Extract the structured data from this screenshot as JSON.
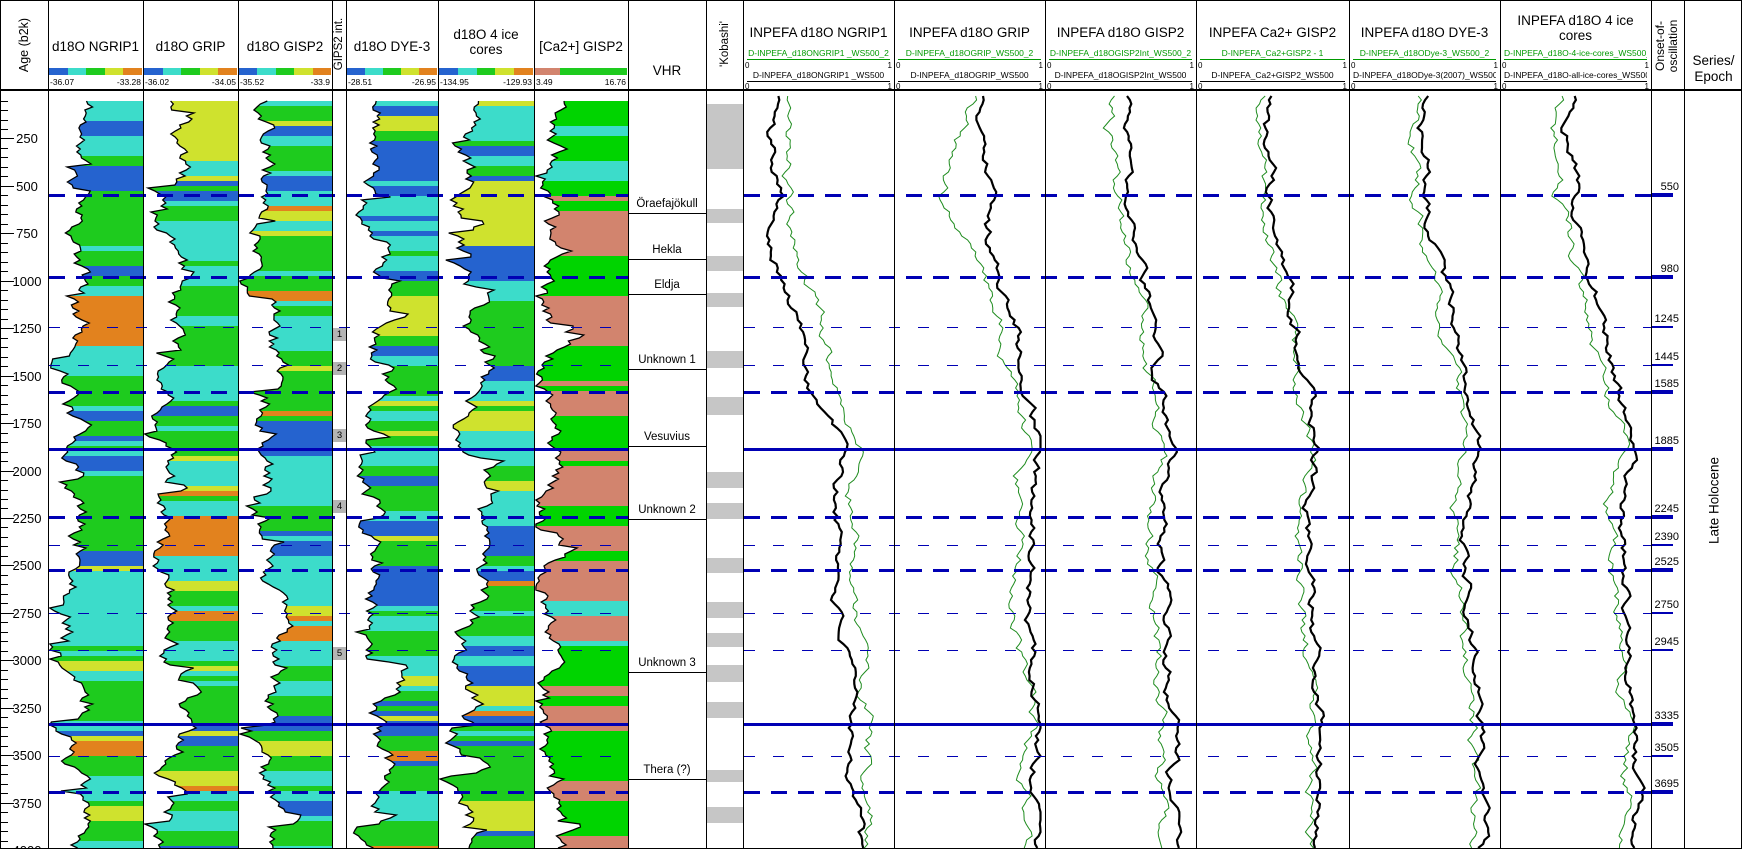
{
  "colors": {
    "marker_line": "#0000b4",
    "green_curve": "#1f8c1f",
    "green_label": "#009900",
    "kobashi_gray": "#c6c6c6",
    "marker_box_gray": "#b4b4b4"
  },
  "chart_data": {
    "type": "well-log-correlation-panel",
    "age_axis": {
      "title": "Age (b2k)",
      "min": 0,
      "max": 4000,
      "minor_step": 50,
      "major_step": 250
    },
    "log_age_samples": [
      0,
      300,
      550,
      800,
      1100,
      1400,
      1700,
      2000,
      2300,
      2600,
      2900,
      3200,
      3500,
      3800,
      4000
    ],
    "log_tracks": [
      {
        "id": "ngrip1",
        "title_lines": [
          "d18O NGRIP1"
        ],
        "scale_min": "-36.07",
        "scale_max": "-33.28",
        "palette": [
          "#2563cf",
          "#3cdcca",
          "#1ecb1e",
          "#cfe22e",
          "#e2821e"
        ],
        "weights": [
          0.16,
          0.4,
          0.33,
          0.07,
          0.04
        ],
        "colorbar": {
          "colors": [
            "#2563cf",
            "#3cdcca",
            "#1ecb1e",
            "#cfe22e",
            "#e2821e"
          ],
          "widths": [
            0.2,
            0.2,
            0.2,
            0.2,
            0.2
          ]
        },
        "seed": 11,
        "trend_values": [
          0.4,
          0.3,
          0.42,
          0.28,
          0.35,
          0.35,
          0.3,
          0.38,
          0.28,
          0.25,
          0.33,
          0.3,
          0.36,
          0.3,
          0.34
        ]
      },
      {
        "id": "grip",
        "title_lines": [
          "d18O GRIP"
        ],
        "scale_min": "-36.02",
        "scale_max": "-34.05",
        "palette": [
          "#2563cf",
          "#3cdcca",
          "#1ecb1e",
          "#cfe22e",
          "#e2821e"
        ],
        "weights": [
          0.14,
          0.36,
          0.37,
          0.09,
          0.04
        ],
        "colorbar": {
          "colors": [
            "#2563cf",
            "#3cdcca",
            "#1ecb1e",
            "#cfe22e",
            "#e2821e"
          ],
          "widths": [
            0.2,
            0.2,
            0.2,
            0.2,
            0.2
          ]
        },
        "seed": 23,
        "trend_values": [
          0.35,
          0.28,
          0.38,
          0.3,
          0.32,
          0.36,
          0.28,
          0.34,
          0.3,
          0.26,
          0.32,
          0.28,
          0.34,
          0.28,
          0.32
        ]
      },
      {
        "id": "gisp2",
        "title_lines": [
          "d18O GISP2"
        ],
        "scale_min": "-35.52",
        "scale_max": "-33.9",
        "palette": [
          "#2563cf",
          "#3cdcca",
          "#1ecb1e",
          "#cfe22e",
          "#e2821e"
        ],
        "weights": [
          0.15,
          0.33,
          0.37,
          0.1,
          0.05
        ],
        "colorbar": {
          "colors": [
            "#2563cf",
            "#3cdcca",
            "#1ecb1e",
            "#cfe22e",
            "#e2821e"
          ],
          "widths": [
            0.2,
            0.2,
            0.2,
            0.2,
            0.2
          ]
        },
        "seed": 37,
        "trend_values": [
          0.3,
          0.35,
          0.28,
          0.34,
          0.3,
          0.38,
          0.32,
          0.36,
          0.28,
          0.32,
          0.3,
          0.34,
          0.28,
          0.34,
          0.3
        ]
      },
      {
        "id": "dye3",
        "title_lines": [
          "d18O DYE-3"
        ],
        "scale_min": "-28.51",
        "scale_max": "-26.95",
        "palette": [
          "#2563cf",
          "#3cdcca",
          "#1ecb1e",
          "#cfe22e",
          "#e2821e"
        ],
        "weights": [
          0.12,
          0.34,
          0.37,
          0.12,
          0.05
        ],
        "colorbar": {
          "colors": [
            "#2563cf",
            "#3cdcca",
            "#1ecb1e",
            "#cfe22e",
            "#e2821e"
          ],
          "widths": [
            0.2,
            0.2,
            0.2,
            0.2,
            0.2
          ]
        },
        "seed": 51,
        "trend_values": [
          0.38,
          0.3,
          0.36,
          0.3,
          0.34,
          0.32,
          0.36,
          0.3,
          0.34,
          0.28,
          0.34,
          0.3,
          0.36,
          0.3,
          0.34
        ]
      },
      {
        "id": "ice4",
        "title_lines": [
          "d18O 4 ice",
          "cores"
        ],
        "scale_min": "-134.95",
        "scale_max": "-129.93",
        "palette": [
          "#2563cf",
          "#3cdcca",
          "#1ecb1e",
          "#cfe22e",
          "#e2821e"
        ],
        "weights": [
          0.13,
          0.34,
          0.36,
          0.12,
          0.05
        ],
        "colorbar": {
          "colors": [
            "#2563cf",
            "#3cdcca",
            "#1ecb1e",
            "#cfe22e",
            "#e2821e"
          ],
          "widths": [
            0.2,
            0.2,
            0.2,
            0.2,
            0.2
          ]
        },
        "seed": 67,
        "trend_values": [
          0.34,
          0.28,
          0.34,
          0.28,
          0.32,
          0.34,
          0.3,
          0.34,
          0.28,
          0.32,
          0.28,
          0.34,
          0.28,
          0.32,
          0.3
        ]
      },
      {
        "id": "ca",
        "title_lines": [
          "[Ca2+] GISP2"
        ],
        "scale_min": "3.49",
        "scale_max": "16.76",
        "palette": [
          "#d2846e",
          "#00d400",
          "#3cdcca",
          "#2563cf"
        ],
        "weights": [
          0.6,
          0.33,
          0.04,
          0.03
        ],
        "weights_top": [
          0.04,
          0.7,
          0.2,
          0.06
        ],
        "top_age": 560,
        "colorbar": {
          "colors": [
            "#d2846e",
            "#1ecb1e"
          ],
          "widths": [
            0.27,
            0.73
          ]
        },
        "seed": 83,
        "trend_values": [
          0.28,
          0.22,
          0.12,
          0.16,
          0.1,
          0.14,
          0.1,
          0.15,
          0.1,
          0.14,
          0.1,
          0.15,
          0.1,
          0.14,
          0.12
        ]
      }
    ],
    "gisp2_interval_column": {
      "title": "GIPS2 int.",
      "markers": [
        {
          "label": "1",
          "age": 1280
        },
        {
          "label": "2",
          "age": 1460
        },
        {
          "label": "3",
          "age": 1815
        },
        {
          "label": "4",
          "age": 2185
        },
        {
          "label": "5",
          "age": 2960
        }
      ]
    },
    "vhr_column": {
      "title": "VHR",
      "events": [
        {
          "label": "Öraefajökull",
          "age": 643
        },
        {
          "label": "Hekla",
          "age": 885
        },
        {
          "label": "Eldja",
          "age": 1070
        },
        {
          "label": "Unknown 1",
          "age": 1465
        },
        {
          "label": "Vesuvius",
          "age": 1870
        },
        {
          "label": "Unknown 2",
          "age": 2255
        },
        {
          "label": "Unknown 3",
          "age": 3060
        },
        {
          "label": "Thera (?)",
          "age": 3625
        }
      ]
    },
    "kobashi_column": {
      "title": "'Kobashi'",
      "intervals": [
        [
          70,
          410
        ],
        [
          620,
          695
        ],
        [
          870,
          950
        ],
        [
          1065,
          1140
        ],
        [
          1370,
          1460
        ],
        [
          1615,
          1710
        ],
        [
          2010,
          2095
        ],
        [
          2170,
          2255
        ],
        [
          2460,
          2540
        ],
        [
          2695,
          2775
        ],
        [
          2855,
          2930
        ],
        [
          3025,
          3115
        ],
        [
          3220,
          3305
        ],
        [
          3580,
          3640
        ],
        [
          3775,
          3860
        ]
      ]
    },
    "inpefa_age_samples": [
      0,
      200,
      400,
      550,
      700,
      900,
      1100,
      1245,
      1450,
      1600,
      1885,
      2100,
      2400,
      2700,
      3000,
      3335,
      3600,
      3800,
      4000
    ],
    "inpefa_tracks": [
      {
        "title_lines": [
          "INPEFA d18O NGRIP1"
        ],
        "seed": 101,
        "curves": [
          {
            "label": "D-INPEFA_d18ONGRIP1 _WS500_2",
            "color": "green",
            "scale_min": "0",
            "scale_max": "1",
            "values": [
              0.3,
              0.26,
              0.3,
              0.27,
              0.3,
              0.4,
              0.47,
              0.55,
              0.58,
              0.64,
              0.8,
              0.72,
              0.76,
              0.73,
              0.79,
              0.84,
              0.8,
              0.86,
              0.82
            ]
          },
          {
            "label": "D-INPEFA_d18ONGRIP1 _WS500",
            "color": "black",
            "scale_min": "0",
            "scale_max": "1",
            "values": [
              0.26,
              0.16,
              0.22,
              0.3,
              0.16,
              0.24,
              0.3,
              0.38,
              0.42,
              0.46,
              0.68,
              0.6,
              0.64,
              0.62,
              0.68,
              0.74,
              0.72,
              0.78,
              0.74
            ]
          }
        ]
      },
      {
        "title_lines": [
          "INPEFA d18O GRIP"
        ],
        "seed": 113,
        "curves": [
          {
            "label": "D-INPEFA_d18OGRIP_WS500_2",
            "color": "green",
            "scale_min": "0",
            "scale_max": "1",
            "values": [
              0.55,
              0.45,
              0.34,
              0.3,
              0.42,
              0.54,
              0.62,
              0.7,
              0.76,
              0.82,
              0.92,
              0.82,
              0.87,
              0.81,
              0.85,
              0.92,
              0.87,
              0.9,
              0.87
            ]
          },
          {
            "label": "D-INPEFA_d18OGRIP_WS500",
            "color": "black",
            "scale_min": "0",
            "scale_max": "1",
            "values": [
              0.58,
              0.55,
              0.6,
              0.62,
              0.58,
              0.66,
              0.74,
              0.82,
              0.86,
              0.9,
              0.98,
              0.9,
              0.93,
              0.89,
              0.92,
              0.96,
              0.93,
              0.96,
              0.93
            ]
          }
        ]
      },
      {
        "title_lines": [
          "INPEFA d18O GISP2"
        ],
        "seed": 127,
        "curves": [
          {
            "label": "D-INPEFA_d18OGISP2Int_WS500_2",
            "color": "green",
            "scale_min": "0",
            "scale_max": "1",
            "values": [
              0.48,
              0.42,
              0.48,
              0.45,
              0.49,
              0.55,
              0.61,
              0.67,
              0.65,
              0.71,
              0.79,
              0.71,
              0.69,
              0.73,
              0.75,
              0.79,
              0.76,
              0.79,
              0.76
            ]
          },
          {
            "label": "D-INPEFA_d18OGISP2Int_WS500",
            "color": "black",
            "scale_min": "0",
            "scale_max": "1",
            "values": [
              0.56,
              0.5,
              0.56,
              0.52,
              0.56,
              0.62,
              0.68,
              0.74,
              0.72,
              0.78,
              0.84,
              0.78,
              0.76,
              0.8,
              0.82,
              0.86,
              0.83,
              0.86,
              0.83
            ]
          }
        ]
      },
      {
        "title_lines": [
          "INPEFA Ca2+ GISP2"
        ],
        "seed": 139,
        "curves": [
          {
            "label": "D-INPEFA_Ca2+GISP2 - 1",
            "color": "green",
            "scale_min": "0",
            "scale_max": "1",
            "values": [
              0.46,
              0.38,
              0.44,
              0.41,
              0.45,
              0.5,
              0.56,
              0.6,
              0.64,
              0.68,
              0.76,
              0.68,
              0.66,
              0.7,
              0.72,
              0.76,
              0.73,
              0.76,
              0.73
            ]
          },
          {
            "label": "D-INPEFA_Ca2+GISP2_WS500",
            "color": "black",
            "scale_min": "0",
            "scale_max": "1",
            "values": [
              0.5,
              0.44,
              0.5,
              0.46,
              0.51,
              0.56,
              0.62,
              0.66,
              0.7,
              0.74,
              0.8,
              0.74,
              0.72,
              0.76,
              0.78,
              0.82,
              0.79,
              0.82,
              0.79
            ]
          }
        ]
      },
      {
        "title_lines": [
          "INPEFA d18O DYE-3"
        ],
        "seed": 151,
        "curves": [
          {
            "label": "D-INPEFA_d18ODye-3_WS500_2",
            "color": "green",
            "scale_min": "0",
            "scale_max": "1",
            "values": [
              0.48,
              0.4,
              0.46,
              0.43,
              0.47,
              0.52,
              0.58,
              0.63,
              0.67,
              0.71,
              0.8,
              0.72,
              0.7,
              0.74,
              0.76,
              0.82,
              0.78,
              0.82,
              0.78
            ]
          },
          {
            "label": "D-INPEFA_d18ODye-3(2007)_WS500",
            "color": "black",
            "scale_min": "0",
            "scale_max": "1",
            "values": [
              0.54,
              0.48,
              0.54,
              0.5,
              0.55,
              0.6,
              0.66,
              0.71,
              0.75,
              0.79,
              0.86,
              0.8,
              0.78,
              0.82,
              0.84,
              0.88,
              0.85,
              0.88,
              0.85
            ]
          }
        ]
      },
      {
        "title_lines": [
          "INPEFA d18O 4 ice",
          "cores"
        ],
        "seed": 163,
        "curves": [
          {
            "label": "D-INPEFA_d18O-4-ice-cores_WS500_2",
            "color": "green",
            "scale_min": "0",
            "scale_max": "1",
            "values": [
              0.44,
              0.36,
              0.42,
              0.39,
              0.44,
              0.5,
              0.56,
              0.62,
              0.66,
              0.72,
              0.82,
              0.74,
              0.72,
              0.76,
              0.78,
              0.86,
              0.82,
              0.86,
              0.82
            ]
          },
          {
            "label": "D-INPEFA_d18O-all-ice-cores_WS500",
            "color": "black",
            "scale_min": "0",
            "scale_max": "1",
            "values": [
              0.5,
              0.44,
              0.5,
              0.47,
              0.52,
              0.58,
              0.64,
              0.7,
              0.74,
              0.78,
              0.88,
              0.82,
              0.8,
              0.84,
              0.86,
              0.9,
              0.87,
              0.9,
              0.87
            ]
          }
        ]
      }
    ],
    "onset_column": {
      "title_line1": "Onset-of-",
      "title_line2": "oscillation",
      "events": [
        {
          "age": 550,
          "style": "major"
        },
        {
          "age": 980,
          "style": "major"
        },
        {
          "age": 1245,
          "style": "minor"
        },
        {
          "age": 1445,
          "style": "minor"
        },
        {
          "age": 1585,
          "style": "major"
        },
        {
          "age": 1885,
          "style": "solid"
        },
        {
          "age": 2245,
          "style": "major"
        },
        {
          "age": 2390,
          "style": "minor"
        },
        {
          "age": 2525,
          "style": "major"
        },
        {
          "age": 2750,
          "style": "minor"
        },
        {
          "age": 2945,
          "style": "minor"
        },
        {
          "age": 3335,
          "style": "solid"
        },
        {
          "age": 3505,
          "style": "minor"
        },
        {
          "age": 3695,
          "style": "major"
        }
      ]
    },
    "series_column": {
      "title_line1": "Series/",
      "title_line2": "Epoch",
      "epoch_label": "Late Holocene"
    }
  }
}
